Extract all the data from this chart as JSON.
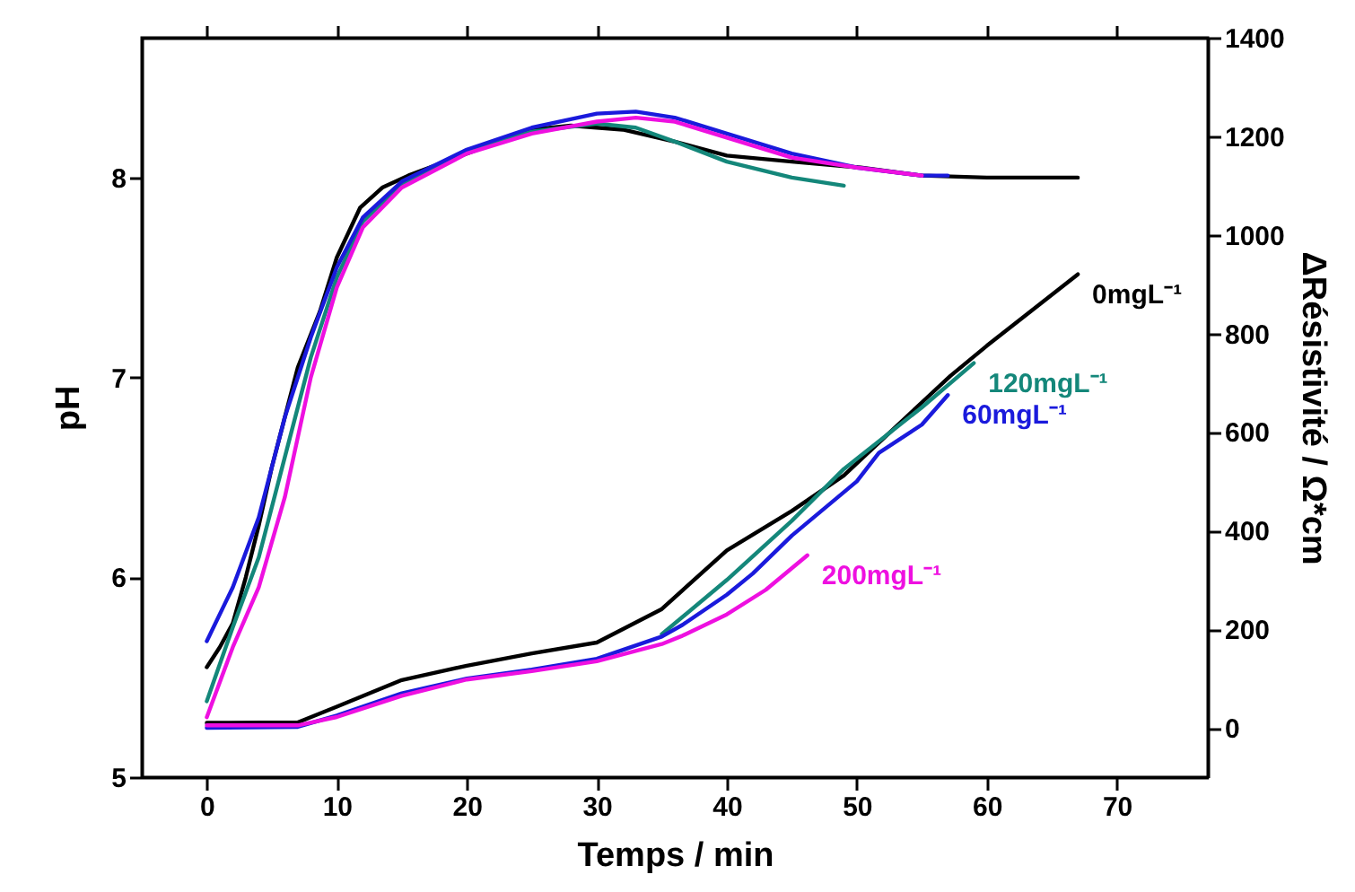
{
  "chart_data": {
    "type": "line",
    "xlabel": "Temps / min",
    "ylabel": "pH",
    "y2label": "ΔRésistivité / Ω*cm",
    "xlim": [
      -5,
      77
    ],
    "xticks": [
      0,
      10,
      20,
      30,
      40,
      50,
      60,
      70
    ],
    "ylim": [
      5,
      8.7
    ],
    "yticks": [
      5,
      6,
      7,
      8
    ],
    "y2lim": [
      -100,
      1400
    ],
    "y2ticks": [
      0,
      200,
      400,
      600,
      800,
      1000,
      1200,
      1400
    ],
    "line_style": "solid",
    "series": [
      {
        "color": "#000000",
        "x": [
          0,
          1,
          2,
          3,
          4,
          5,
          6,
          7,
          8.7,
          10,
          11.8,
          13.5,
          15.5,
          20,
          25,
          28,
          32,
          36,
          40,
          45,
          50.3,
          55,
          60,
          67
        ],
        "values": [
          5.55,
          5.65,
          5.77,
          6.0,
          6.26,
          6.55,
          6.8,
          7.05,
          7.33,
          7.6,
          7.85,
          7.95,
          8.01,
          8.12,
          8.24,
          8.26,
          8.24,
          8.18,
          8.11,
          8.08,
          8.05,
          8.01,
          8.0,
          8.0
        ]
      },
      {
        "color": "#14877a",
        "x": [
          0,
          2,
          4,
          6,
          8,
          10,
          12,
          15,
          20,
          25,
          30,
          33,
          36,
          40,
          45,
          49
        ],
        "values": [
          5.38,
          5.75,
          6.1,
          6.6,
          7.1,
          7.5,
          7.78,
          7.97,
          8.13,
          8.23,
          8.27,
          8.25,
          8.18,
          8.08,
          8.0,
          7.96
        ]
      },
      {
        "color": "#1a1adc",
        "x": [
          0,
          2,
          4,
          6,
          8,
          10,
          12,
          15,
          20,
          25,
          30,
          33,
          36,
          40,
          45,
          50,
          55,
          57
        ],
        "values": [
          5.68,
          5.95,
          6.3,
          6.8,
          7.2,
          7.55,
          7.8,
          7.98,
          8.14,
          8.25,
          8.32,
          8.33,
          8.3,
          8.22,
          8.12,
          8.05,
          8.01,
          8.01
        ]
      },
      {
        "color": "#ee10e0",
        "x": [
          0,
          2,
          4,
          6,
          8,
          10,
          12,
          15,
          20,
          25,
          30,
          33,
          36,
          40,
          45,
          50,
          55
        ],
        "values": [
          5.3,
          5.65,
          5.95,
          6.4,
          7.0,
          7.45,
          7.75,
          7.95,
          8.12,
          8.22,
          8.28,
          8.3,
          8.28,
          8.2,
          8.1,
          8.05,
          8.01
        ]
      },
      {
        "name": "0mgL⁻¹",
        "axis": "y2",
        "color": "#000000",
        "x": [
          0,
          7,
          10,
          15,
          20,
          25,
          30,
          35,
          40,
          45,
          49,
          55,
          57.2,
          60,
          67
        ],
        "values": [
          10,
          11,
          43,
          97,
          126,
          151,
          173,
          241,
          360,
          440,
          512,
          660,
          714,
          775,
          920
        ]
      },
      {
        "name": "120mgL⁻¹",
        "axis": "y2",
        "color": "#14877a",
        "x": [
          35,
          40,
          45,
          49,
          55,
          59
        ],
        "values": [
          190,
          300,
          420,
          525,
          650,
          740
        ]
      },
      {
        "name": "60mgL⁻¹",
        "axis": "y2",
        "color": "#1a1adc",
        "x": [
          0,
          7,
          10,
          15,
          20,
          25,
          30,
          35,
          36.6,
          40,
          42,
          45,
          50,
          51.7,
          55,
          57
        ],
        "values": [
          0,
          2,
          25,
          70,
          100,
          118,
          140,
          185,
          209,
          270,
          313,
          390,
          500,
          558,
          615,
          675
        ]
      },
      {
        "name": "200mgL⁻¹",
        "axis": "y2",
        "color": "#ee10e0",
        "x": [
          0,
          7,
          10,
          15,
          20,
          25,
          30,
          35,
          36.6,
          40,
          43,
          46.2
        ],
        "values": [
          5,
          5,
          22,
          65,
          98,
          115,
          135,
          170,
          187,
          230,
          280,
          350
        ]
      }
    ]
  }
}
